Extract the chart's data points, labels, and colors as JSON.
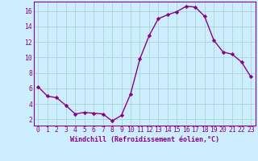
{
  "x": [
    0,
    1,
    2,
    3,
    4,
    5,
    6,
    7,
    8,
    9,
    10,
    11,
    12,
    13,
    14,
    15,
    16,
    17,
    18,
    19,
    20,
    21,
    22,
    23
  ],
  "y": [
    6.2,
    5.0,
    4.8,
    3.8,
    2.7,
    2.9,
    2.8,
    2.7,
    1.8,
    2.5,
    5.3,
    9.8,
    12.8,
    15.0,
    15.5,
    15.9,
    16.6,
    16.5,
    15.3,
    12.2,
    10.7,
    10.4,
    9.4,
    7.5
  ],
  "line_color": "#8B008B",
  "marker": "D",
  "marker_size": 2.2,
  "line_width": 1.0,
  "bg_color": "#cceeff",
  "grid_color": "#b0d8d8",
  "xlabel": "Windchill (Refroidissement éolien,°C)",
  "xlabel_fontsize": 6.0,
  "xtick_labels": [
    "0",
    "1",
    "2",
    "3",
    "4",
    "5",
    "6",
    "7",
    "8",
    "9",
    "10",
    "11",
    "12",
    "13",
    "14",
    "15",
    "16",
    "17",
    "18",
    "19",
    "20",
    "21",
    "22",
    "23"
  ],
  "ytick_labels": [
    "2",
    "4",
    "6",
    "8",
    "10",
    "12",
    "14",
    "16"
  ],
  "yticks": [
    2,
    4,
    6,
    8,
    10,
    12,
    14,
    16
  ],
  "ylim": [
    1.2,
    17.2
  ],
  "xlim": [
    -0.5,
    23.5
  ],
  "tick_fontsize": 5.8,
  "tick_color": "#8B008B",
  "spine_color": "#8B008B"
}
